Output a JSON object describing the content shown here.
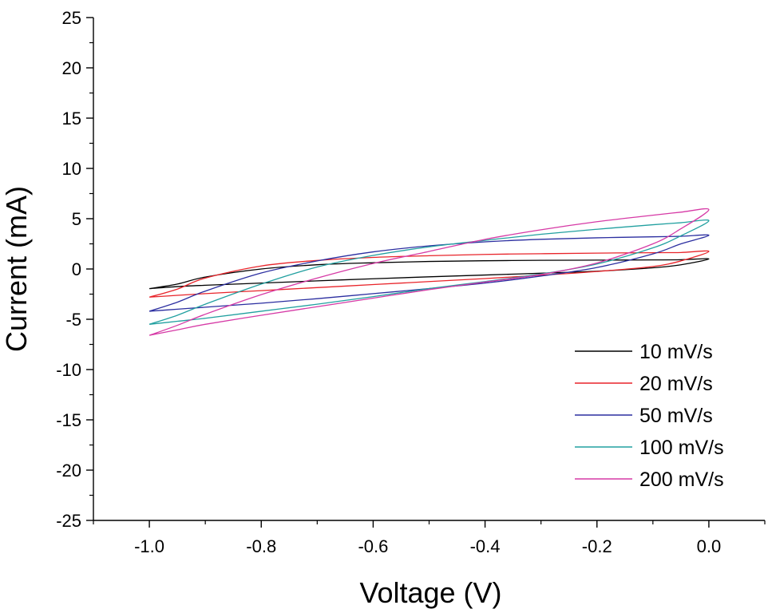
{
  "chart_data": {
    "type": "line",
    "title": "",
    "xlabel": "Voltage (V)",
    "ylabel": "Current (mA)",
    "xlim": [
      -1.1,
      0.1
    ],
    "ylim": [
      -25,
      25
    ],
    "xticks": [
      -1.0,
      -0.8,
      -0.6,
      -0.4,
      -0.2,
      0.0
    ],
    "xtick_labels": [
      "-1.0",
      "-0.8",
      "-0.6",
      "-0.4",
      "-0.2",
      "0.0"
    ],
    "yticks": [
      25,
      20,
      15,
      10,
      5,
      0,
      -5,
      -10,
      -15,
      -20,
      -25
    ],
    "ytick_labels": [
      "25",
      "20",
      "15",
      "10",
      "5",
      "0",
      "-5",
      "-10",
      "-15",
      "-20",
      "-25"
    ],
    "grid": false,
    "legend_position": "bottom-right",
    "series": [
      {
        "name": "10 mV/s",
        "color": "#000000",
        "x": [
          -1.0,
          -0.95,
          -0.9,
          -0.8,
          -0.7,
          -0.6,
          -0.5,
          -0.4,
          -0.3,
          -0.2,
          -0.1,
          -0.05,
          0.0,
          -0.05,
          -0.1,
          -0.2,
          -0.3,
          -0.4,
          -0.5,
          -0.6,
          -0.7,
          -0.8,
          -0.9,
          -0.95,
          -1.0
        ],
        "y": [
          -1.95,
          -1.5,
          -0.8,
          0.0,
          0.42,
          0.62,
          0.75,
          0.82,
          0.86,
          0.88,
          0.9,
          0.92,
          1.0,
          0.42,
          0.12,
          -0.22,
          -0.42,
          -0.6,
          -0.78,
          -0.97,
          -1.18,
          -1.4,
          -1.62,
          -1.75,
          -1.95
        ]
      },
      {
        "name": "20 mV/s",
        "color": "#e8242a",
        "x": [
          -1.0,
          -0.95,
          -0.9,
          -0.8,
          -0.7,
          -0.6,
          -0.5,
          -0.4,
          -0.3,
          -0.2,
          -0.1,
          -0.05,
          0.0,
          -0.05,
          -0.1,
          -0.2,
          -0.3,
          -0.4,
          -0.5,
          -0.6,
          -0.7,
          -0.8,
          -0.9,
          -0.95,
          -1.0
        ],
        "y": [
          -2.8,
          -2.0,
          -0.9,
          0.3,
          0.85,
          1.15,
          1.32,
          1.45,
          1.52,
          1.58,
          1.62,
          1.64,
          1.75,
          0.8,
          0.25,
          -0.25,
          -0.62,
          -0.95,
          -1.25,
          -1.55,
          -1.85,
          -2.15,
          -2.45,
          -2.62,
          -2.8
        ]
      },
      {
        "name": "50 mV/s",
        "color": "#2b2ea0",
        "x": [
          -1.0,
          -0.95,
          -0.9,
          -0.8,
          -0.7,
          -0.6,
          -0.5,
          -0.4,
          -0.3,
          -0.2,
          -0.1,
          -0.05,
          0.0,
          -0.05,
          -0.1,
          -0.2,
          -0.3,
          -0.4,
          -0.5,
          -0.6,
          -0.7,
          -0.8,
          -0.9,
          -0.95,
          -1.0
        ],
        "y": [
          -4.2,
          -3.3,
          -2.2,
          -0.4,
          0.8,
          1.7,
          2.3,
          2.7,
          2.95,
          3.1,
          3.2,
          3.25,
          3.35,
          2.5,
          1.5,
          0.15,
          -0.7,
          -1.4,
          -1.95,
          -2.45,
          -2.95,
          -3.4,
          -3.8,
          -4.0,
          -4.2
        ]
      },
      {
        "name": "100 mV/s",
        "color": "#22a0a0",
        "x": [
          -1.0,
          -0.95,
          -0.9,
          -0.8,
          -0.7,
          -0.6,
          -0.5,
          -0.4,
          -0.3,
          -0.2,
          -0.1,
          -0.05,
          0.0,
          -0.05,
          -0.1,
          -0.2,
          -0.3,
          -0.4,
          -0.5,
          -0.6,
          -0.7,
          -0.8,
          -0.9,
          -0.95,
          -1.0
        ],
        "y": [
          -5.5,
          -4.6,
          -3.5,
          -1.5,
          0.2,
          1.35,
          2.2,
          2.85,
          3.45,
          3.95,
          4.4,
          4.6,
          4.8,
          3.3,
          2.1,
          0.5,
          -0.5,
          -1.25,
          -1.95,
          -2.75,
          -3.5,
          -4.2,
          -4.9,
          -5.2,
          -5.5
        ]
      },
      {
        "name": "200 mV/s",
        "color": "#d63aa6",
        "x": [
          -1.0,
          -0.95,
          -0.9,
          -0.8,
          -0.7,
          -0.6,
          -0.5,
          -0.4,
          -0.3,
          -0.2,
          -0.1,
          -0.05,
          0.0,
          -0.05,
          -0.1,
          -0.2,
          -0.3,
          -0.4,
          -0.5,
          -0.6,
          -0.7,
          -0.8,
          -0.9,
          -0.95,
          -1.0
        ],
        "y": [
          -6.6,
          -5.6,
          -4.5,
          -2.55,
          -0.9,
          0.55,
          1.75,
          2.95,
          3.9,
          4.7,
          5.35,
          5.65,
          5.9,
          4.0,
          2.5,
          0.6,
          -0.55,
          -1.3,
          -2.05,
          -2.9,
          -3.75,
          -4.6,
          -5.5,
          -6.05,
          -6.6
        ]
      }
    ]
  }
}
